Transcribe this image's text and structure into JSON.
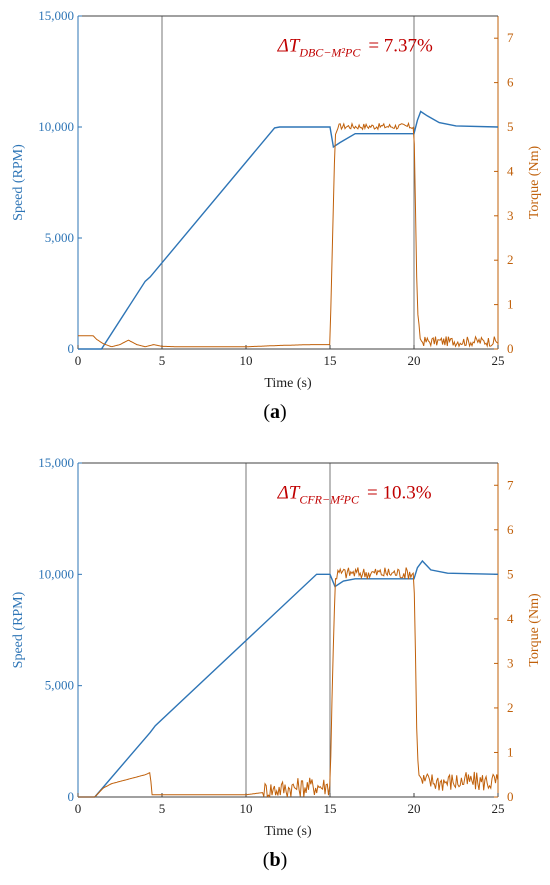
{
  "colors": {
    "speed": "#2e75b6",
    "torque": "#c0600a",
    "annotation": "#c00000",
    "axis": "#404040",
    "vline": "#555555"
  },
  "chart_data": [
    {
      "type": "line",
      "panel_label": "a",
      "xlabel": "Time (s)",
      "ylabel_left": "Speed (RPM)",
      "ylabel_right": "Torque (Nm)",
      "xlim": [
        0,
        25
      ],
      "ylim_left": [
        0,
        15000
      ],
      "ylim_right": [
        0,
        7.5
      ],
      "x_ticks": [
        "0",
        "5",
        "10",
        "15",
        "20",
        "25"
      ],
      "y_left_ticks": [
        "0",
        "5,000",
        "10,000",
        "15,000"
      ],
      "y_right_ticks": [
        "0",
        "1",
        "2",
        "3",
        "4",
        "5",
        "6",
        "7"
      ],
      "grid": false,
      "vertical_markers": [
        5,
        20
      ],
      "annotation": {
        "prefix": "ΔT",
        "subscript": "DBC−M²PC",
        "value": "= 7.37%",
        "x": 12,
        "y": 6.7
      },
      "series": [
        {
          "axis": "left",
          "x": [
            0,
            1.4,
            4.0,
            4.3,
            11.7,
            12.0,
            15.0,
            15.2,
            15.6,
            16.5,
            20.0,
            20.2,
            20.4,
            20.8,
            21.5,
            22.5,
            25
          ],
          "values": [
            0,
            0,
            3050,
            3250,
            9960,
            10000,
            10000,
            9100,
            9300,
            9700,
            9700,
            10300,
            10700,
            10500,
            10200,
            10050,
            10000
          ]
        },
        {
          "axis": "right",
          "noise": 0.07,
          "noise_start": 15.5,
          "x": [
            0,
            0.9,
            1.1,
            1.5,
            2.0,
            2.5,
            3.0,
            3.5,
            4.0,
            4.5,
            5.0,
            6.0,
            8.0,
            10.0,
            12.0,
            14.0,
            15.0,
            15.3,
            15.5,
            20.0,
            20.2,
            20.4,
            25
          ],
          "values": [
            0.3,
            0.3,
            0.22,
            0.12,
            0.05,
            0.1,
            0.2,
            0.1,
            0.05,
            0.1,
            0.06,
            0.05,
            0.05,
            0.05,
            0.08,
            0.1,
            0.1,
            4.8,
            5.0,
            5.0,
            0.8,
            0.15,
            0.15
          ]
        }
      ]
    },
    {
      "type": "line",
      "panel_label": "b",
      "xlabel": "Time (s)",
      "ylabel_left": "Speed (RPM)",
      "ylabel_right": "Torque (Nm)",
      "xlim": [
        0,
        25
      ],
      "ylim_left": [
        0,
        15000
      ],
      "ylim_right": [
        0,
        7.5
      ],
      "x_ticks": [
        "0",
        "5",
        "10",
        "15",
        "20",
        "25"
      ],
      "y_left_ticks": [
        "0",
        "5,000",
        "10,000",
        "15,000"
      ],
      "y_right_ticks": [
        "0",
        "1",
        "2",
        "3",
        "4",
        "5",
        "6",
        "7"
      ],
      "grid": false,
      "vertical_markers": [
        10,
        15
      ],
      "annotation": {
        "prefix": "ΔT",
        "subscript": "CFR−M²PC",
        "value": "= 10.3%",
        "x": 12,
        "y": 6.7
      },
      "series": [
        {
          "axis": "left",
          "x": [
            0,
            1.0,
            4.3,
            4.6,
            14.2,
            15.0,
            15.3,
            15.8,
            16.5,
            20.0,
            20.2,
            20.5,
            21.0,
            22.0,
            25
          ],
          "values": [
            0,
            0,
            2900,
            3200,
            10000,
            10000,
            9450,
            9700,
            9800,
            9800,
            10300,
            10600,
            10200,
            10050,
            10000
          ]
        },
        {
          "axis": "right",
          "noise": 0.14,
          "noise_start": 11.0,
          "x": [
            0,
            1.0,
            1.5,
            2.0,
            3.0,
            4.0,
            4.3,
            4.4,
            5.0,
            8.0,
            10.0,
            11.0,
            14.0,
            15.0,
            15.3,
            15.5,
            20.0,
            20.2,
            20.4,
            25
          ],
          "values": [
            0,
            0,
            0.2,
            0.3,
            0.4,
            0.5,
            0.55,
            0.05,
            0.05,
            0.05,
            0.05,
            0.1,
            0.2,
            0.2,
            4.9,
            5.0,
            5.0,
            0.8,
            0.3,
            0.3
          ]
        }
      ]
    }
  ]
}
